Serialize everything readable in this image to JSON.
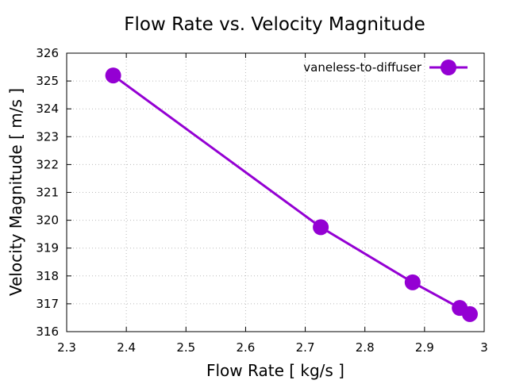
{
  "chart_data": {
    "type": "line",
    "title": "Flow Rate vs. Velocity Magnitude",
    "xlabel": "Flow Rate [ kg/s ]",
    "ylabel": "Velocity Magnitude [ m/s ]",
    "xlim": [
      2.3,
      3.0
    ],
    "ylim": [
      316,
      326
    ],
    "xticks": [
      2.3,
      2.4,
      2.5,
      2.6,
      2.7,
      2.8,
      2.9,
      3.0
    ],
    "xtick_labels": [
      "2.3",
      "2.4",
      "2.5",
      "2.6",
      "2.7",
      "2.8",
      "2.9",
      "3"
    ],
    "yticks": [
      316,
      317,
      318,
      319,
      320,
      321,
      322,
      323,
      324,
      325,
      326
    ],
    "ytick_labels": [
      "316",
      "317",
      "318",
      "319",
      "320",
      "321",
      "322",
      "323",
      "324",
      "325",
      "326"
    ],
    "grid": true,
    "legend_position": "top-right",
    "series": [
      {
        "name": "vaneless-to-diffuser",
        "color": "#9400D3",
        "marker": "circle",
        "x": [
          2.378,
          2.726,
          2.88,
          2.959,
          2.976
        ],
        "y": [
          325.2,
          319.75,
          317.77,
          316.85,
          316.63
        ]
      }
    ]
  }
}
